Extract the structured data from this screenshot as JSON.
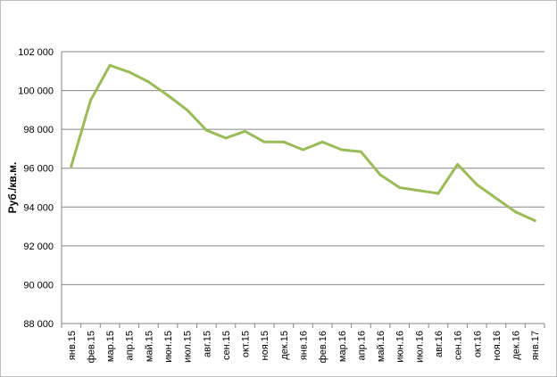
{
  "chart_data": {
    "type": "line",
    "title": "",
    "xlabel": "",
    "ylabel": "Руб./кв.м.",
    "ylim": [
      88000,
      102000
    ],
    "ytick_step": 2000,
    "ytick_labels": [
      "88 000",
      "90 000",
      "92 000",
      "94 000",
      "96 000",
      "98 000",
      "100 000",
      "102 000"
    ],
    "grid": true,
    "legend": "none",
    "categories": [
      "янв.15",
      "фев.15",
      "мар.15",
      "апр.15",
      "май.15",
      "июн.15",
      "июл.15",
      "авг.15",
      "сен.15",
      "окт.15",
      "ноя.15",
      "дек.15",
      "янв.16",
      "фев.16",
      "мар.16",
      "апр.16",
      "май.16",
      "июн.16",
      "июл.16",
      "авг.16",
      "сен.16",
      "окт.16",
      "ноя.16",
      "дек.16",
      "янв.17"
    ],
    "series": [
      {
        "color": "#9bbb59",
        "values": [
          96100,
          99500,
          101300,
          100950,
          100450,
          99750,
          99000,
          97950,
          97550,
          97900,
          97350,
          97350,
          96950,
          97350,
          96950,
          96850,
          95650,
          95000,
          94850,
          94700,
          96200,
          95150,
          94450,
          93750,
          93300
        ]
      }
    ]
  }
}
